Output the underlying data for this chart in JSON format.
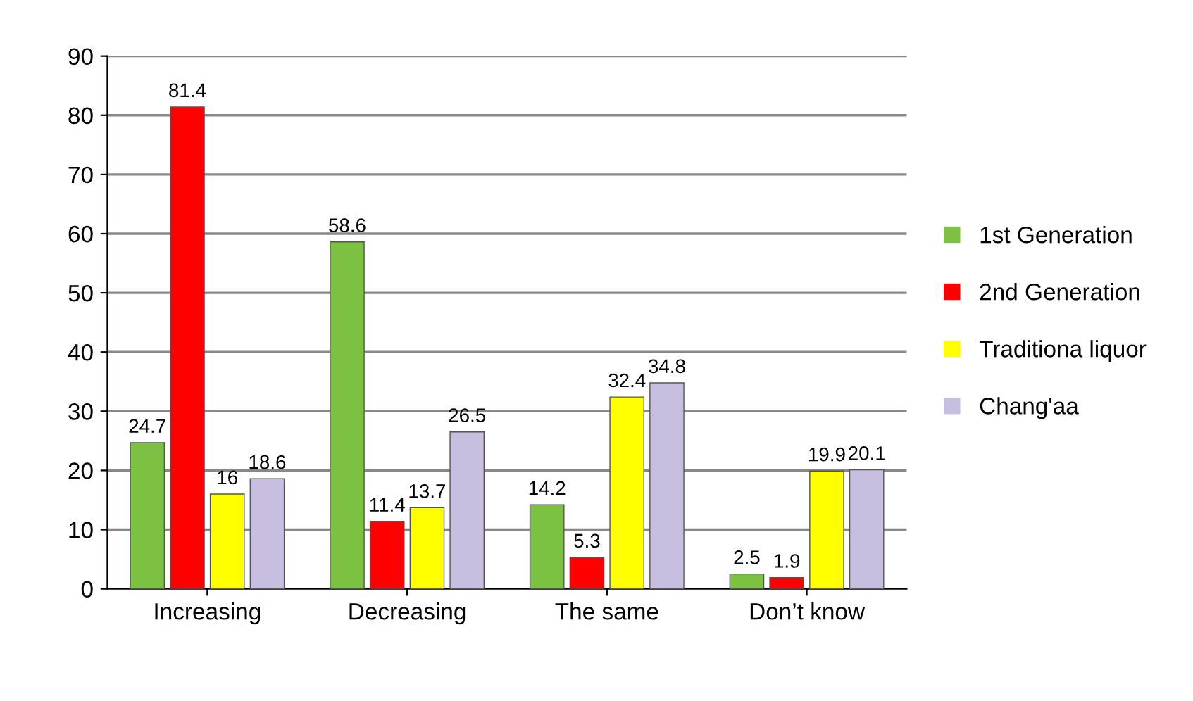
{
  "chart_data": {
    "type": "bar",
    "categories": [
      "Increasing",
      "Decreasing",
      "The same",
      "Don’t know"
    ],
    "series": [
      {
        "name": "1st Generation",
        "color": "#7dc142",
        "values": [
          24.7,
          58.6,
          14.2,
          2.5
        ]
      },
      {
        "name": "2nd Generation",
        "color": "#ff0000",
        "values": [
          81.4,
          11.4,
          5.3,
          1.9
        ]
      },
      {
        "name": "Traditiona liquor",
        "color": "#ffff00",
        "values": [
          16,
          13.7,
          32.4,
          19.9
        ]
      },
      {
        "name": "Chang'aa",
        "color": "#c8bfe0",
        "values": [
          18.6,
          26.5,
          34.8,
          20.1
        ]
      }
    ],
    "ylim": [
      0,
      90
    ],
    "yticks": [
      0,
      10,
      20,
      30,
      40,
      50,
      60,
      70,
      80,
      90
    ],
    "grid": "y",
    "legend": "right",
    "data_labels": true
  }
}
